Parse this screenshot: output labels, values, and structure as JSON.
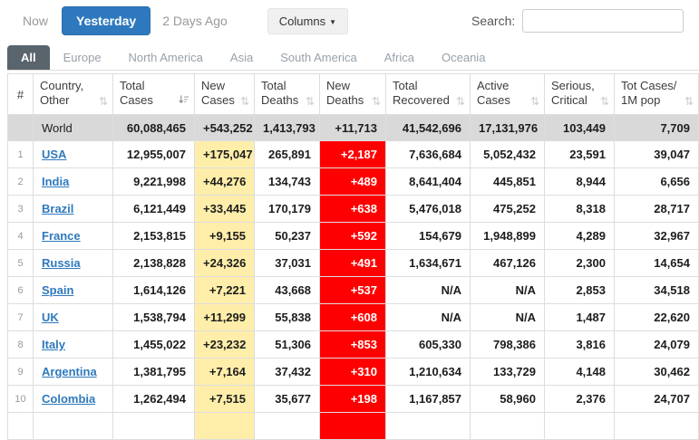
{
  "toolbar": {
    "now": "Now",
    "yesterday": "Yesterday",
    "two_days_ago": "2 Days Ago",
    "columns": "Columns",
    "search_label": "Search:",
    "search_value": ""
  },
  "tabs": [
    {
      "label": "All",
      "active": true
    },
    {
      "label": "Europe",
      "active": false
    },
    {
      "label": "North America",
      "active": false
    },
    {
      "label": "Asia",
      "active": false
    },
    {
      "label": "South America",
      "active": false
    },
    {
      "label": "Africa",
      "active": false
    },
    {
      "label": "Oceania",
      "active": false
    }
  ],
  "table": {
    "headers": [
      {
        "key": "rank",
        "lines": [
          "#"
        ],
        "sort": "none"
      },
      {
        "key": "country",
        "lines": [
          "Country,",
          "Other"
        ],
        "sort": "unsorted"
      },
      {
        "key": "total_cases",
        "lines": [
          "Total",
          "Cases"
        ],
        "sort": "desc"
      },
      {
        "key": "new_cases",
        "lines": [
          "New",
          "Cases"
        ],
        "sort": "unsorted"
      },
      {
        "key": "total_deaths",
        "lines": [
          "Total",
          "Deaths"
        ],
        "sort": "unsorted"
      },
      {
        "key": "new_deaths",
        "lines": [
          "New",
          "Deaths"
        ],
        "sort": "unsorted"
      },
      {
        "key": "total_recovered",
        "lines": [
          "Total",
          "Recovered"
        ],
        "sort": "unsorted"
      },
      {
        "key": "active_cases",
        "lines": [
          "Active",
          "Cases"
        ],
        "sort": "unsorted"
      },
      {
        "key": "serious_critical",
        "lines": [
          "Serious,",
          "Critical"
        ],
        "sort": "unsorted"
      },
      {
        "key": "cases_per_1m",
        "lines": [
          "Tot Cases/",
          "1M pop"
        ],
        "sort": "unsorted"
      }
    ],
    "world_row": {
      "rank": "",
      "country": "World",
      "total_cases": "60,088,465",
      "new_cases": "+543,252",
      "total_deaths": "1,413,793",
      "new_deaths": "+11,713",
      "total_recovered": "41,542,696",
      "active_cases": "17,131,976",
      "serious_critical": "103,449",
      "cases_per_1m": "7,709"
    },
    "rows": [
      {
        "rank": "1",
        "country": "USA",
        "total_cases": "12,955,007",
        "new_cases": "+175,047",
        "total_deaths": "265,891",
        "new_deaths": "+2,187",
        "total_recovered": "7,636,684",
        "active_cases": "5,052,432",
        "serious_critical": "23,591",
        "cases_per_1m": "39,047"
      },
      {
        "rank": "2",
        "country": "India",
        "total_cases": "9,221,998",
        "new_cases": "+44,276",
        "total_deaths": "134,743",
        "new_deaths": "+489",
        "total_recovered": "8,641,404",
        "active_cases": "445,851",
        "serious_critical": "8,944",
        "cases_per_1m": "6,656"
      },
      {
        "rank": "3",
        "country": "Brazil",
        "total_cases": "6,121,449",
        "new_cases": "+33,445",
        "total_deaths": "170,179",
        "new_deaths": "+638",
        "total_recovered": "5,476,018",
        "active_cases": "475,252",
        "serious_critical": "8,318",
        "cases_per_1m": "28,717"
      },
      {
        "rank": "4",
        "country": "France",
        "total_cases": "2,153,815",
        "new_cases": "+9,155",
        "total_deaths": "50,237",
        "new_deaths": "+592",
        "total_recovered": "154,679",
        "active_cases": "1,948,899",
        "serious_critical": "4,289",
        "cases_per_1m": "32,967"
      },
      {
        "rank": "5",
        "country": "Russia",
        "total_cases": "2,138,828",
        "new_cases": "+24,326",
        "total_deaths": "37,031",
        "new_deaths": "+491",
        "total_recovered": "1,634,671",
        "active_cases": "467,126",
        "serious_critical": "2,300",
        "cases_per_1m": "14,654"
      },
      {
        "rank": "6",
        "country": "Spain",
        "total_cases": "1,614,126",
        "new_cases": "+7,221",
        "total_deaths": "43,668",
        "new_deaths": "+537",
        "total_recovered": "N/A",
        "active_cases": "N/A",
        "serious_critical": "2,853",
        "cases_per_1m": "34,518"
      },
      {
        "rank": "7",
        "country": "UK",
        "total_cases": "1,538,794",
        "new_cases": "+11,299",
        "total_deaths": "55,838",
        "new_deaths": "+608",
        "total_recovered": "N/A",
        "active_cases": "N/A",
        "serious_critical": "1,487",
        "cases_per_1m": "22,620"
      },
      {
        "rank": "8",
        "country": "Italy",
        "total_cases": "1,455,022",
        "new_cases": "+23,232",
        "total_deaths": "51,306",
        "new_deaths": "+853",
        "total_recovered": "605,330",
        "active_cases": "798,386",
        "serious_critical": "3,816",
        "cases_per_1m": "24,079"
      },
      {
        "rank": "9",
        "country": "Argentina",
        "total_cases": "1,381,795",
        "new_cases": "+7,164",
        "total_deaths": "37,432",
        "new_deaths": "+310",
        "total_recovered": "1,210,634",
        "active_cases": "133,729",
        "serious_critical": "4,148",
        "cases_per_1m": "30,462"
      },
      {
        "rank": "10",
        "country": "Colombia",
        "total_cases": "1,262,494",
        "new_cases": "+7,515",
        "total_deaths": "35,677",
        "new_deaths": "+198",
        "total_recovered": "1,167,857",
        "active_cases": "58,960",
        "serious_critical": "2,376",
        "cases_per_1m": "24,707"
      }
    ],
    "partial_row_visible": true
  },
  "colors": {
    "accent_blue": "#2e79bd",
    "active_tab_gray": "#5a646c",
    "new_cases_yellow": "#ffeeaa",
    "new_deaths_red": "#ff0000",
    "world_row_gray": "#d9d9d9"
  }
}
